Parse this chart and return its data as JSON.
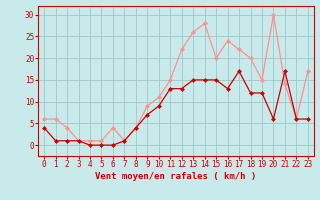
{
  "x": [
    0,
    1,
    2,
    3,
    4,
    5,
    6,
    7,
    8,
    9,
    10,
    11,
    12,
    13,
    14,
    15,
    16,
    17,
    18,
    19,
    20,
    21,
    22,
    23
  ],
  "avg_wind": [
    4,
    1,
    1,
    1,
    0,
    0,
    0,
    1,
    4,
    7,
    9,
    13,
    13,
    15,
    15,
    15,
    13,
    17,
    12,
    12,
    6,
    17,
    6,
    6
  ],
  "gust_wind": [
    6,
    6,
    4,
    1,
    1,
    1,
    4,
    1,
    4,
    9,
    11,
    15,
    22,
    26,
    28,
    20,
    24,
    22,
    20,
    15,
    30,
    14,
    6,
    17
  ],
  "bg_color": "#c8eaea",
  "grid_color": "#a0c8c8",
  "avg_color": "#cc0000",
  "gust_color": "#ff9090",
  "xlabel": "Vent moyen/en rafales ( km/h )",
  "yticks": [
    0,
    5,
    10,
    15,
    20,
    25,
    30
  ],
  "ylim": [
    -2.5,
    32
  ],
  "xlim": [
    -0.5,
    23.5
  ],
  "marker_size": 2.5,
  "linewidth": 0.9,
  "xlabel_color": "#cc0000",
  "tick_color": "#cc0000",
  "spine_color": "#cc0000",
  "tick_fontsize": 5.5,
  "xlabel_fontsize": 6.5
}
